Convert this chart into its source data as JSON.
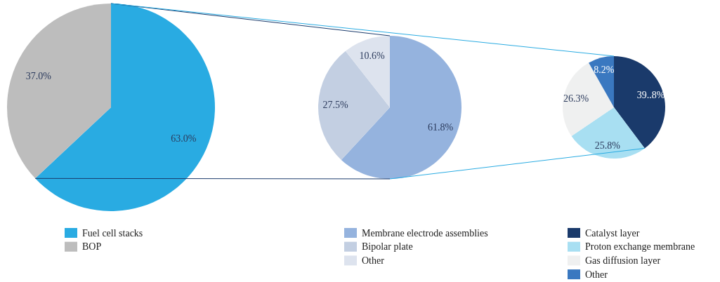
{
  "chart_data": [
    {
      "type": "pie",
      "categories": [
        "Fuel cell stacks",
        "BOP"
      ],
      "values": [
        63.0,
        37.0
      ],
      "colors": [
        "#29abe2",
        "#bdbdbd"
      ],
      "value_labels": [
        "63.0%",
        "37.0%"
      ],
      "legend": "bottom"
    },
    {
      "type": "pie",
      "categories": [
        "Membrane electrode assemblies",
        "Bipolar plate",
        "Other"
      ],
      "values": [
        61.8,
        27.5,
        10.6
      ],
      "colors": [
        "#95b3de",
        "#c3cfe2",
        "#dde3ee"
      ],
      "value_labels": [
        "61.8%",
        "27.5%",
        "10.6%"
      ],
      "legend": "bottom"
    },
    {
      "type": "pie",
      "categories": [
        "Catalyst layer",
        "Proton exchange membrane",
        "Gas diffusion layer",
        "Other"
      ],
      "values": [
        39.8,
        25.8,
        26.3,
        8.2
      ],
      "colors": [
        "#1a3a6b",
        "#a8dff2",
        "#eff0f0",
        "#3a78c0"
      ],
      "value_labels": [
        "39..8%",
        "25.8%",
        "26.3%",
        "8.2%"
      ],
      "legend": "bottom"
    }
  ]
}
